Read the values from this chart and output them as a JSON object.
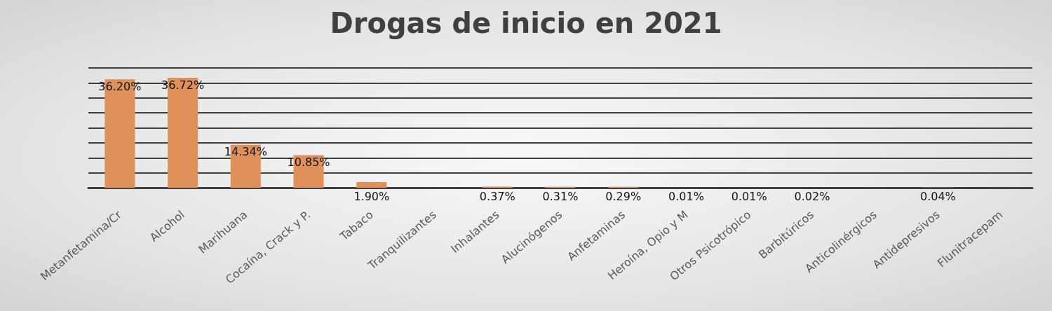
{
  "chart_data": {
    "type": "bar",
    "title": "Drogas de inicio en 2021",
    "categories": [
      "Metanfetamina/Cr",
      "Alcohol",
      "Marihuana",
      "Cocaína, Crack y P.",
      "Tabaco",
      "Tranquilizantes",
      "Inhalantes",
      "Alucinógenos",
      "Anfetaminas",
      "Heroína, Opio y M",
      "Otros Psicotrópico",
      "Barbitúricos",
      "Anticolinérgicos",
      "Antidepresivos",
      "Flunitracepam"
    ],
    "values": [
      36.2,
      36.72,
      14.34,
      10.85,
      1.9,
      null,
      0.37,
      0.31,
      0.29,
      0.01,
      0.01,
      0.02,
      null,
      0.04,
      null
    ],
    "value_labels": [
      "36.20%",
      "36.72%",
      "14.34%",
      "10.85%",
      "1.90%",
      null,
      "0.37%",
      "0.31%",
      "0.29%",
      "0.01%",
      "0.01%",
      "0.02%",
      null,
      "0.04%",
      null
    ],
    "color": "#e0915a",
    "ylim": [
      0,
      40
    ],
    "yticks": [
      {
        "value": 0,
        "label": null
      },
      {
        "value": 5,
        "label": null
      },
      {
        "value": 10,
        "label": null
      },
      {
        "value": 15,
        "label": null
      },
      {
        "value": 20,
        "label": null
      },
      {
        "value": 25,
        "label": null
      },
      {
        "value": 30,
        "label": null
      },
      {
        "value": 35,
        "label": null
      },
      {
        "value": 40,
        "label": null
      }
    ],
    "tick_labels": "x",
    "grid": "y"
  }
}
